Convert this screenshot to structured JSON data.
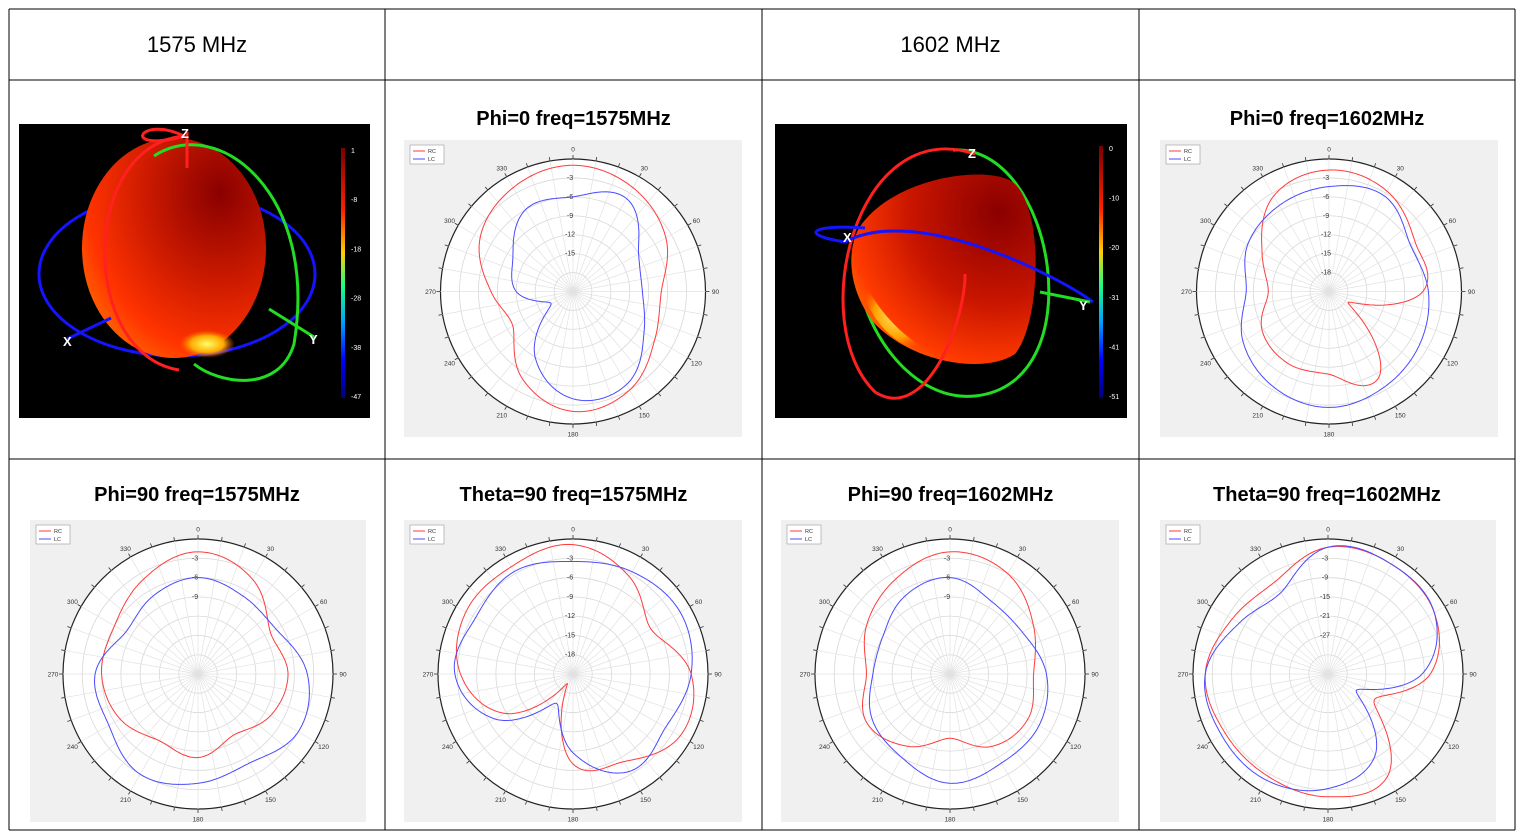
{
  "headers": [
    "1575 MHz",
    "",
    "1602 MHz",
    ""
  ],
  "colors": {
    "rc": "#ff3b3b",
    "lc": "#4a4aff",
    "x_axis": "#1414ff",
    "y_axis": "#22dd22",
    "z_axis": "#ff2020"
  },
  "pattern3d": [
    {
      "colorbar_ticks": [
        "1",
        "-8",
        "-18",
        "-28",
        "-38",
        "-47"
      ],
      "axis_labels": {
        "x": "X",
        "y": "Y",
        "z": "Z"
      }
    },
    {
      "colorbar_ticks": [
        "0",
        "-10",
        "-20",
        "-31",
        "-41",
        "-51"
      ],
      "axis_labels": {
        "x": "X",
        "y": "Y",
        "z": "Z"
      }
    }
  ],
  "chart_data": [
    {
      "type": "polar",
      "title": "Phi=0 freq=1575MHz",
      "legend": [
        "RC",
        "LC"
      ],
      "angle_labels": [
        "0",
        "30",
        "60",
        "90",
        "120",
        "150",
        "180",
        "210",
        "240",
        "270",
        "300",
        "330"
      ],
      "radial_labels": [
        "-3",
        "-6",
        "-9",
        "-12",
        "-15"
      ],
      "rlim": [
        -21,
        0
      ],
      "series": [
        {
          "name": "RC",
          "color": "#ff3b3b",
          "theta": [
            0,
            30,
            60,
            90,
            120,
            150,
            180,
            210,
            240,
            270,
            300,
            330
          ],
          "r": [
            -1,
            -2,
            -4,
            -7,
            -6,
            -3,
            -2,
            -5,
            -10,
            -8,
            -4,
            -2
          ]
        },
        {
          "name": "LC",
          "color": "#4a4aff",
          "theta": [
            0,
            30,
            60,
            90,
            120,
            150,
            180,
            210,
            240,
            270,
            300,
            330
          ],
          "r": [
            -6,
            -4,
            -9,
            -10,
            -8,
            -4,
            -4,
            -9,
            -17,
            -12,
            -10,
            -6
          ]
        }
      ]
    },
    {
      "type": "polar",
      "title": "Phi=0 freq=1602MHz",
      "legend": [
        "RC",
        "LC"
      ],
      "angle_labels": [
        "0",
        "30",
        "60",
        "90",
        "120",
        "150",
        "180",
        "210",
        "240",
        "270",
        "300",
        "330"
      ],
      "radial_labels": [
        "-3",
        "-6",
        "-9",
        "-12",
        "-15",
        "-18"
      ],
      "rlim": [
        -24,
        0
      ],
      "series": [
        {
          "name": "RC",
          "color": "#ff3b3b",
          "theta": [
            0,
            30,
            60,
            90,
            120,
            150,
            180,
            210,
            240,
            270,
            300,
            330
          ],
          "r": [
            -2,
            -3,
            -6,
            -7,
            -20,
            -6,
            -9,
            -9,
            -10,
            -13,
            -10,
            -4
          ]
        },
        {
          "name": "LC",
          "color": "#4a4aff",
          "theta": [
            0,
            30,
            60,
            90,
            120,
            150,
            180,
            210,
            240,
            270,
            300,
            330
          ],
          "r": [
            -5,
            -4,
            -7,
            -6,
            -5,
            -4,
            -3,
            -4,
            -6,
            -9,
            -7,
            -6
          ]
        }
      ]
    },
    {
      "type": "polar",
      "title": "Phi=90 freq=1575MHz",
      "legend": [
        "RC",
        "LC"
      ],
      "angle_labels": [
        "0",
        "30",
        "60",
        "90",
        "120",
        "150",
        "180",
        "210",
        "240",
        "270",
        "300",
        "330"
      ],
      "radial_labels": [
        "-3",
        "-6",
        "-9"
      ],
      "rlim": [
        -21,
        0
      ],
      "series": [
        {
          "name": "RC",
          "color": "#ff3b3b",
          "theta": [
            0,
            30,
            60,
            90,
            120,
            150,
            180,
            210,
            240,
            270,
            300,
            330
          ],
          "r": [
            -2,
            -4,
            -8,
            -7,
            -8,
            -10,
            -8,
            -9,
            -7,
            -6,
            -6,
            -4
          ]
        },
        {
          "name": "LC",
          "color": "#4a4aff",
          "theta": [
            0,
            30,
            60,
            90,
            120,
            150,
            180,
            210,
            240,
            270,
            300,
            330
          ],
          "r": [
            -6,
            -7,
            -7,
            -4,
            -3,
            -5,
            -4,
            -3,
            -5,
            -5,
            -8,
            -7
          ]
        }
      ]
    },
    {
      "type": "polar",
      "title": "Theta=90 freq=1575MHz",
      "legend": [
        "RC",
        "LC"
      ],
      "angle_labels": [
        "0",
        "30",
        "60",
        "90",
        "120",
        "150",
        "180",
        "210",
        "240",
        "270",
        "300",
        "330"
      ],
      "radial_labels": [
        "-3",
        "-6",
        "-9",
        "-12",
        "-15",
        "-18"
      ],
      "rlim": [
        -24,
        0
      ],
      "series": [
        {
          "name": "RC",
          "color": "#ff3b3b",
          "theta": [
            0,
            30,
            60,
            90,
            120,
            150,
            180,
            210,
            240,
            270,
            300,
            330
          ],
          "r": [
            -1,
            -4,
            -8,
            -3,
            -2,
            -6,
            -8,
            -22,
            -10,
            -4,
            -2,
            -2
          ]
        },
        {
          "name": "LC",
          "color": "#4a4aff",
          "theta": [
            0,
            30,
            60,
            90,
            120,
            150,
            180,
            210,
            240,
            270,
            300,
            330
          ],
          "r": [
            -4,
            -3,
            -2,
            -3,
            -5,
            -4,
            -10,
            -18,
            -8,
            -3,
            -4,
            -3
          ]
        }
      ]
    },
    {
      "type": "polar",
      "title": "Phi=90 freq=1602MHz",
      "legend": [
        "RC",
        "LC"
      ],
      "angle_labels": [
        "0",
        "30",
        "60",
        "90",
        "120",
        "150",
        "180",
        "210",
        "240",
        "270",
        "300",
        "330"
      ],
      "radial_labels": [
        "-3",
        "-6",
        "-9"
      ],
      "rlim": [
        -21,
        0
      ],
      "series": [
        {
          "name": "RC",
          "color": "#ff3b3b",
          "theta": [
            0,
            30,
            60,
            90,
            120,
            150,
            180,
            210,
            240,
            270,
            300,
            330
          ],
          "r": [
            -2,
            -3,
            -6,
            -8,
            -7,
            -8,
            -11,
            -8,
            -6,
            -8,
            -6,
            -4
          ]
        },
        {
          "name": "LC",
          "color": "#4a4aff",
          "theta": [
            0,
            30,
            60,
            90,
            120,
            150,
            180,
            210,
            240,
            270,
            300,
            330
          ],
          "r": [
            -6,
            -8,
            -8,
            -6,
            -5,
            -5,
            -4,
            -6,
            -7,
            -9,
            -9,
            -7
          ]
        }
      ]
    },
    {
      "type": "polar",
      "title": "Theta=90 freq=1602MHz",
      "legend": [
        "RC",
        "LC"
      ],
      "angle_labels": [
        "0",
        "30",
        "60",
        "90",
        "120",
        "150",
        "180",
        "210",
        "240",
        "270",
        "300",
        "330"
      ],
      "radial_labels": [
        "-3",
        "-9",
        "-15",
        "-21",
        "-27"
      ],
      "rlim": [
        -33,
        0
      ],
      "series": [
        {
          "name": "RC",
          "color": "#ff3b3b",
          "theta": [
            0,
            30,
            60,
            90,
            120,
            150,
            180,
            210,
            240,
            270,
            300,
            330
          ],
          "r": [
            -2,
            -2,
            -3,
            -8,
            -20,
            -4,
            -3,
            -4,
            -4,
            -3,
            -6,
            -7
          ]
        },
        {
          "name": "LC",
          "color": "#4a4aff",
          "theta": [
            0,
            30,
            60,
            90,
            120,
            150,
            180,
            210,
            240,
            270,
            300,
            330
          ],
          "r": [
            -2,
            -2,
            -3,
            -10,
            -25,
            -10,
            -5,
            -3,
            -3,
            -3,
            -8,
            -10
          ]
        }
      ]
    }
  ]
}
